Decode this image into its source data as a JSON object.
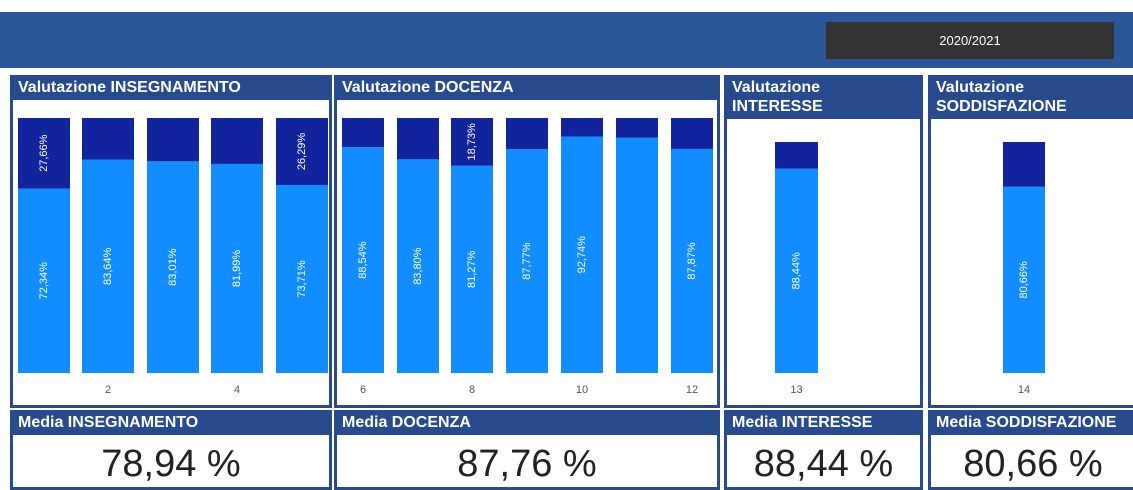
{
  "filter": {
    "label": "2020/2021"
  },
  "chart_data": [
    {
      "type": "bar",
      "stacked": true,
      "title": "Valutazione INSEGNAMENTO",
      "categories": [
        null,
        "2",
        null,
        "4",
        null
      ],
      "ylim": [
        0,
        100
      ],
      "series": [
        {
          "color": "#118dff",
          "values": [
            72.34,
            83.64,
            83.01,
            81.99,
            73.71
          ],
          "value_labels": [
            "72,34%",
            "83,64%",
            "83,01%",
            "81,99%",
            "73,71%"
          ]
        },
        {
          "color": "#12239e",
          "values": [
            27.66,
            16.36,
            16.99,
            18.01,
            26.29
          ],
          "value_labels": [
            "27,66%",
            null,
            null,
            null,
            "26,29%"
          ]
        }
      ]
    },
    {
      "type": "bar",
      "stacked": true,
      "title": "Valutazione DOCENZA",
      "categories": [
        "6",
        null,
        "8",
        null,
        "10",
        null,
        "12"
      ],
      "ylim": [
        0,
        100
      ],
      "series": [
        {
          "color": "#118dff",
          "values": [
            88.54,
            83.8,
            81.27,
            87.77,
            92.74,
            92.3,
            87.87
          ],
          "value_labels": [
            "88,54%",
            "83,80%",
            "81,27%",
            "87,77%",
            "92,74%",
            null,
            "87,87%"
          ]
        },
        {
          "color": "#12239e",
          "values": [
            11.46,
            16.2,
            18.73,
            12.23,
            7.26,
            7.7,
            12.13
          ],
          "value_labels": [
            null,
            null,
            "18,73%",
            null,
            null,
            null,
            null
          ]
        }
      ]
    },
    {
      "type": "bar",
      "stacked": true,
      "title": "Valutazione INTERESSE",
      "categories": [
        "13"
      ],
      "ylim": [
        0,
        100
      ],
      "series": [
        {
          "color": "#118dff",
          "values": [
            88.44
          ],
          "value_labels": [
            "88,44%"
          ]
        },
        {
          "color": "#12239e",
          "values": [
            11.56
          ],
          "value_labels": [
            null
          ]
        }
      ]
    },
    {
      "type": "bar",
      "stacked": true,
      "title": "Valutazione SODDISFAZIONE",
      "categories": [
        "14"
      ],
      "ylim": [
        0,
        100
      ],
      "series": [
        {
          "color": "#118dff",
          "values": [
            80.66
          ],
          "value_labels": [
            "80,66%"
          ]
        },
        {
          "color": "#12239e",
          "values": [
            19.34
          ],
          "value_labels": [
            null
          ]
        }
      ]
    }
  ],
  "kpis": [
    {
      "title": "Media INSEGNAMENTO",
      "value": "78,94 %"
    },
    {
      "title": "Media DOCENZA",
      "value": "87,76 %"
    },
    {
      "title": "Media INTERESSE",
      "value": "88,44 %"
    },
    {
      "title": "Media SODDISFAZIONE",
      "value": "80,66 %"
    }
  ]
}
